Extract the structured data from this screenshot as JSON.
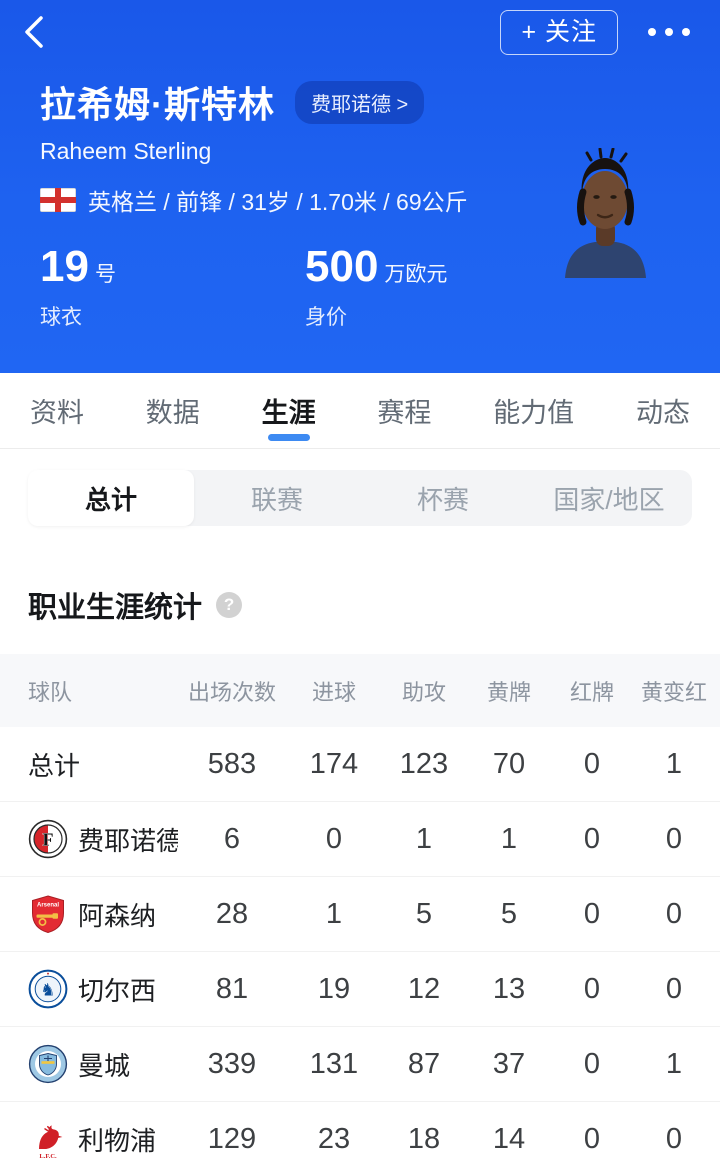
{
  "topbar": {
    "follow_label": "+ 关注"
  },
  "player": {
    "name_cn": "拉希姆·斯特林",
    "badge_label": "费耶诺德 >",
    "name_en": "Raheem Sterling",
    "info_line": "英格兰 / 前锋 / 31岁 / 1.70米 / 69公斤",
    "jersey_number": "19",
    "jersey_unit": "号",
    "jersey_label": "球衣",
    "value_number": "500",
    "value_unit": "万欧元",
    "value_label": "身价"
  },
  "tabs": {
    "active": "生涯",
    "items": [
      {
        "label": "资料"
      },
      {
        "label": "数据"
      },
      {
        "label": "生涯"
      },
      {
        "label": "赛程"
      },
      {
        "label": "能力值"
      },
      {
        "label": "动态"
      }
    ]
  },
  "subtabs": {
    "active": "总计",
    "items": [
      {
        "label": "总计"
      },
      {
        "label": "联赛"
      },
      {
        "label": "杯赛"
      },
      {
        "label": "国家/地区"
      }
    ]
  },
  "career": {
    "title": "职业生涯统计",
    "help_glyph": "?"
  },
  "table": {
    "headers": [
      "球队",
      "出场次数",
      "进球",
      "助攻",
      "黄牌",
      "红牌",
      "黄变红"
    ],
    "rows": [
      {
        "team": "总计",
        "logo": "",
        "values": [
          583,
          174,
          123,
          70,
          0,
          1
        ]
      },
      {
        "team": "费耶诺德",
        "logo": "feyenoord-crest",
        "values": [
          6,
          0,
          1,
          1,
          0,
          0
        ]
      },
      {
        "team": "阿森纳",
        "logo": "arsenal-crest",
        "values": [
          28,
          1,
          5,
          5,
          0,
          0
        ]
      },
      {
        "team": "切尔西",
        "logo": "chelsea-crest",
        "values": [
          81,
          19,
          12,
          13,
          0,
          0
        ]
      },
      {
        "team": "曼城",
        "logo": "man-city-crest",
        "values": [
          339,
          131,
          87,
          37,
          0,
          1
        ]
      },
      {
        "team": "利物浦",
        "logo": "liverpool-crest",
        "values": [
          129,
          23,
          18,
          14,
          0,
          0
        ]
      }
    ]
  },
  "colors": {
    "hero_blue": "#1e62f0",
    "badge_blue": "#164fc9",
    "tab_underline": "#3d8af2",
    "table_header_bg": "#f7f8fa"
  }
}
